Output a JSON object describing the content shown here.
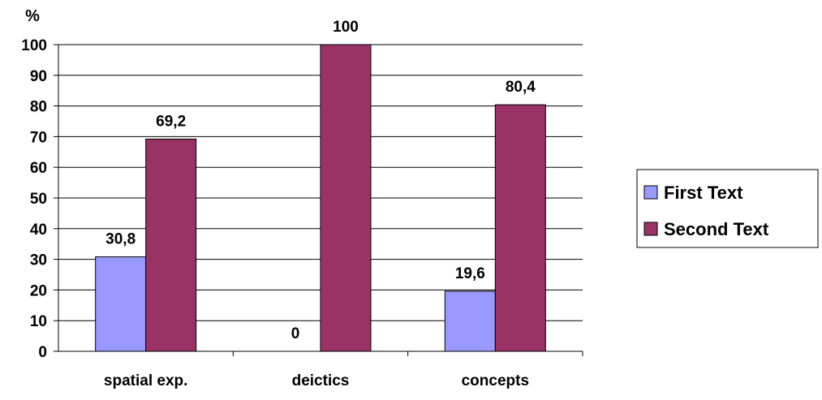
{
  "chart_data": {
    "type": "bar",
    "title": "",
    "xlabel": "",
    "ylabel": "%",
    "categories": [
      "spatial exp.",
      "deictics",
      "concepts"
    ],
    "series": [
      {
        "name": "First Text",
        "values": [
          30.8,
          0,
          19.6
        ],
        "labels": [
          "30,8",
          "0",
          "19,6"
        ],
        "color": "#9999ff"
      },
      {
        "name": "Second Text",
        "values": [
          69.2,
          100,
          80.4
        ],
        "labels": [
          "69,2",
          "100",
          "80,4"
        ],
        "color": "#993366"
      }
    ],
    "ylim": [
      0,
      100
    ],
    "yticks": [
      0,
      10,
      20,
      30,
      40,
      50,
      60,
      70,
      80,
      90,
      100
    ],
    "grid": true,
    "legend_position": "right"
  }
}
